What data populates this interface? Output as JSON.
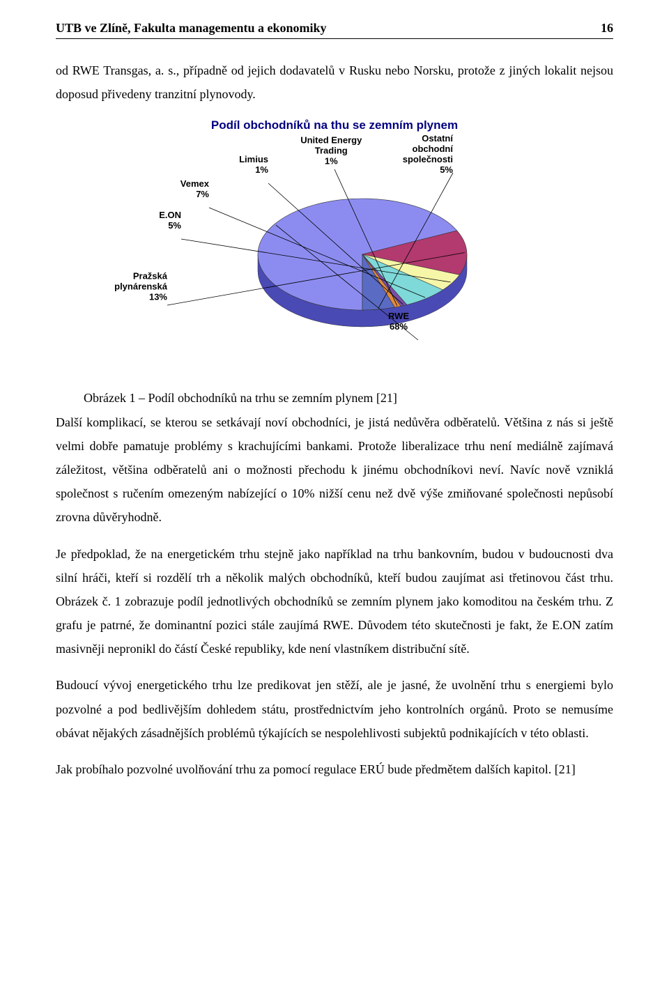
{
  "header": {
    "left": "UTB ve Zlíně, Fakulta managementu a ekonomiky",
    "page_number": "16"
  },
  "intro": "od RWE Transgas, a. s., případně od jejich dodavatelů v Rusku nebo Norsku, protože z jiných lokalit nejsou doposud přivedeny tranzitní plynovody.",
  "chart": {
    "title": "Podíl obchodníků na thu se zemním plynem",
    "type": "pie",
    "background_color": "#ffffff",
    "title_color": "#000080",
    "title_fontsize": 17,
    "label_fontfamily": "Arial",
    "label_fontsize": 13,
    "label_fontweight": "bold",
    "label_color": "#000000",
    "depth_fill": "#4a4ab5",
    "outline": "#333333",
    "slices": [
      {
        "name": "RWE",
        "label": "RWE\n68%",
        "value": 68,
        "color": "#8c8cf0"
      },
      {
        "name": "Pražská plynárenská",
        "label": "Pražská\nplynárenská\n13%",
        "value": 13,
        "color": "#b23a6e"
      },
      {
        "name": "E.ON",
        "label": "E.ON\n5%",
        "value": 5,
        "color": "#f6f6a8"
      },
      {
        "name": "Vemex",
        "label": "Vemex\n7%",
        "value": 7,
        "color": "#7fd9d9"
      },
      {
        "name": "Limius",
        "label": "Limius\n1%",
        "value": 1,
        "color": "#7a4da8"
      },
      {
        "name": "United Energy Trading",
        "label": "United Energy\nTrading\n1%",
        "value": 1,
        "color": "#e08a3d"
      },
      {
        "name": "Ostatní obchodní společnosti",
        "label": "Ostatní\nobchodní\nspolečnosti\n5%",
        "value": 5,
        "color": "#5a6bc4"
      }
    ]
  },
  "caption_lead": "Obrázek 1 – Podíl obchodníků na trhu se zemním plynem [21]",
  "paragraphs": [
    "Další komplikací, se kterou se setkávají noví obchodníci, je jistá nedůvěra odběratelů. Většina z nás si ještě velmi dobře pamatuje problémy s krachujícími bankami. Protože liberalizace trhu není mediálně zajímavá záležitost, většina odběratelů ani o možnosti přechodu k jinému obchodníkovi neví. Navíc nově vzniklá společnost s ručením omezeným nabízející o 10% nižší cenu než dvě výše zmiňované společnosti nepůsobí zrovna důvěryhodně.",
    "Je předpoklad, že na energetickém trhu stejně jako například na trhu bankovním, budou v budoucnosti dva silní hráči, kteří si rozdělí trh a několik malých obchodníků, kteří budou zaujímat asi třetinovou část trhu. Obrázek č. 1 zobrazuje podíl jednotlivých obchodníků se zemním plynem jako komoditou na českém trhu. Z grafu je patrné, že dominantní pozici stále zaujímá RWE. Důvodem této skutečnosti je fakt, že E.ON zatím masivněji nepronikl do částí České republiky, kde není vlastníkem distribuční sítě.",
    "Budoucí vývoj energetického trhu lze predikovat jen stěží, ale je jasné, že uvolnění trhu s energiemi bylo pozvolné a pod bedlivějším dohledem státu, prostřednictvím jeho kontrolních orgánů. Proto se nemusíme obávat nějakých zásadnějších problémů týkajících se nespolehlivosti subjektů podnikajících v této oblasti.",
    "Jak probíhalo pozvolné uvolňování trhu za pomocí regulace ERÚ bude předmětem dalších kapitol. [21]"
  ]
}
